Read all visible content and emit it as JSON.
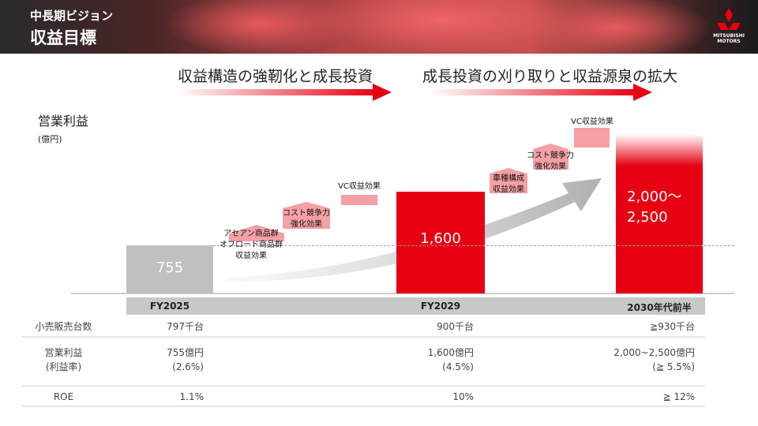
{
  "header": {
    "title": "中長期ビジョン",
    "subtitle": "収益目標",
    "logo": "MITSUBISHI\nMOTORS"
  },
  "phases": [
    "収益構造の強靭化と成長投資",
    "成長投資の刈り取りと収益源泉の拡大"
  ],
  "chart_data": {
    "type": "bar",
    "y_label": "営業利益",
    "y_unit": "(億円)",
    "categories": [
      "FY2025",
      "FY2029",
      "2030年代前半"
    ],
    "values": [
      755,
      1600,
      2000
    ],
    "upper_values": [
      null,
      null,
      2500
    ],
    "value_labels": [
      "755",
      "1,600",
      "2,000〜\n2,500"
    ],
    "colors": [
      "#c0c0c0",
      "#e60012",
      "#e60012"
    ],
    "ylim": [
      0,
      2500
    ],
    "annotations": [
      "アセアン商品群\nオフロード商品群\n収益効果",
      "コスト競争力\n強化効果",
      "VC収益効果",
      "車種構成\n収益効果",
      "コスト競争力\n強化効果",
      "VC収益効果"
    ]
  },
  "table": {
    "rows": [
      [
        "小売販売台数",
        "797千台",
        "900千台",
        "≧930千台"
      ],
      [
        "営業利益\n(利益率)",
        "755億円\n(2.6%)",
        "1,600億円\n(4.5%)",
        "2,000~2,500億円\n(≧ 5.5%)"
      ],
      [
        "ROE",
        "1.1%",
        "10%",
        "≧ 12%"
      ]
    ]
  }
}
